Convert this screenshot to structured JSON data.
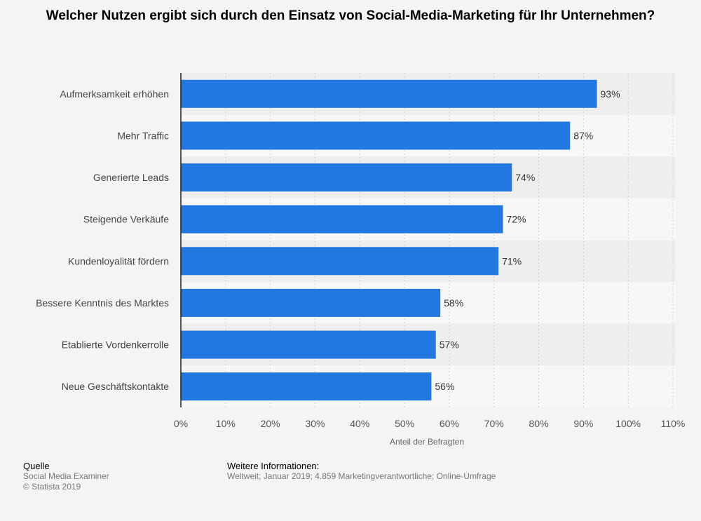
{
  "title": "Welcher Nutzen ergibt sich durch den Einsatz von Social-Media-Marketing für Ihr Unternehmen?",
  "chart_data": {
    "type": "bar",
    "orientation": "horizontal",
    "categories": [
      "Aufmerksamkeit erhöhen",
      "Mehr Traffic",
      "Generierte Leads",
      "Steigende Verkäufe",
      "Kundenloyalität fördern",
      "Bessere Kenntnis des Marktes",
      "Etablierte Vordenkerrolle",
      "Neue Geschäftskontakte"
    ],
    "values": [
      93,
      87,
      74,
      72,
      71,
      58,
      57,
      56
    ],
    "value_labels": [
      "93%",
      "87%",
      "74%",
      "72%",
      "71%",
      "58%",
      "57%",
      "56%"
    ],
    "x_ticks": [
      0,
      10,
      20,
      30,
      40,
      50,
      60,
      70,
      80,
      90,
      100,
      110
    ],
    "x_tick_labels": [
      "0%",
      "10%",
      "20%",
      "30%",
      "40%",
      "50%",
      "60%",
      "70%",
      "80%",
      "90%",
      "100%",
      "110%"
    ],
    "xlim": [
      0,
      110
    ],
    "xlabel": "Anteil der Befragten",
    "ylabel": "",
    "grid": true,
    "bar_color": "#2377e0"
  },
  "footer": {
    "source_heading": "Quelle",
    "source_name": "Social Media Examiner",
    "copyright": "© Statista 2019",
    "info_heading": "Weitere Informationen:",
    "info_text": "Weltweit; Januar 2019; 4.859 Marketingverantwortliche; Online-Umfrage"
  }
}
